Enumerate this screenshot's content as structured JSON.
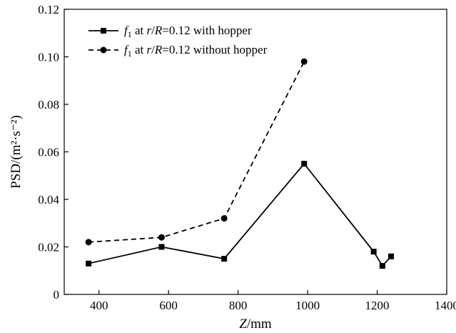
{
  "chart_data": {
    "type": "line",
    "title": "",
    "xlabel_var": "Z",
    "xlabel_unit": "/mm",
    "ylabel": "PSD/(m²·s⁻²)",
    "xlim": [
      300,
      1400
    ],
    "ylim": [
      0,
      0.12
    ],
    "xticks": [
      400,
      600,
      800,
      1000,
      1200,
      1400
    ],
    "xtick_labels": [
      "400",
      "600",
      "800",
      "1000",
      "1200",
      "1400"
    ],
    "yticks": [
      0,
      0.02,
      0.04,
      0.06,
      0.08,
      0.1,
      0.12
    ],
    "ytick_labels": [
      "0",
      "0.02",
      "0.04",
      "0.06",
      "0.08",
      "0.10",
      "0.12"
    ],
    "grid": false,
    "legend_position": "top-left",
    "series": [
      {
        "name": "f1 at r/R=0.12 with hopper",
        "legend_parts": {
          "f": "f",
          "sub": "1",
          "at": " at ",
          "r": "r",
          "slash": "/",
          "R": "R",
          "rest": "=0.12 with hopper"
        },
        "marker": "square",
        "linestyle": "solid",
        "color": "#000000",
        "x": [
          370,
          580,
          760,
          990,
          1190,
          1215,
          1240
        ],
        "y": [
          0.013,
          0.02,
          0.015,
          0.055,
          0.018,
          0.012,
          0.016
        ]
      },
      {
        "name": "f1 at r/R=0.12 without hopper",
        "legend_parts": {
          "f": "f",
          "sub": "1",
          "at": " at ",
          "r": "r",
          "slash": "/",
          "R": "R",
          "rest": "=0.12 without hopper"
        },
        "marker": "circle",
        "linestyle": "dashed",
        "color": "#000000",
        "x": [
          370,
          580,
          760,
          990
        ],
        "y": [
          0.022,
          0.024,
          0.032,
          0.098
        ]
      }
    ]
  }
}
